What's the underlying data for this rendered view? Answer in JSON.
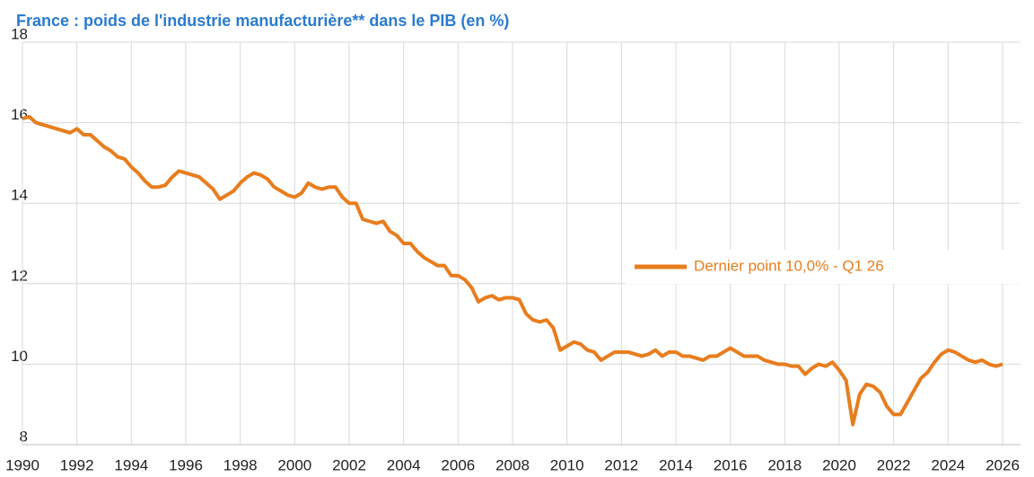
{
  "chart_data": {
    "type": "line",
    "title": "France : poids de l'industrie manufacturière** dans le PIB (en %)",
    "x": [
      1990,
      1990.25,
      1990.5,
      1990.75,
      1991,
      1991.25,
      1991.5,
      1991.75,
      1992,
      1992.25,
      1992.5,
      1992.75,
      1993,
      1993.25,
      1993.5,
      1993.75,
      1994,
      1994.25,
      1994.5,
      1994.75,
      1995,
      1995.25,
      1995.5,
      1995.75,
      1996,
      1996.25,
      1996.5,
      1996.75,
      1997,
      1997.25,
      1997.5,
      1997.75,
      1998,
      1998.25,
      1998.5,
      1998.75,
      1999,
      1999.25,
      1999.5,
      1999.75,
      2000,
      2000.25,
      2000.5,
      2000.75,
      2001,
      2001.25,
      2001.5,
      2001.75,
      2002,
      2002.25,
      2002.5,
      2002.75,
      2003,
      2003.25,
      2003.5,
      2003.75,
      2004,
      2004.25,
      2004.5,
      2004.75,
      2005,
      2005.25,
      2005.5,
      2005.75,
      2006,
      2006.25,
      2006.5,
      2006.75,
      2007,
      2007.25,
      2007.5,
      2007.75,
      2008,
      2008.25,
      2008.5,
      2008.75,
      2009,
      2009.25,
      2009.5,
      2009.75,
      2010,
      2010.25,
      2010.5,
      2010.75,
      2011,
      2011.25,
      2011.5,
      2011.75,
      2012,
      2012.25,
      2012.5,
      2012.75,
      2013,
      2013.25,
      2013.5,
      2013.75,
      2014,
      2014.25,
      2014.5,
      2014.75,
      2015,
      2015.25,
      2015.5,
      2015.75,
      2016,
      2016.25,
      2016.5,
      2016.75,
      2017,
      2017.25,
      2017.5,
      2017.75,
      2018,
      2018.25,
      2018.5,
      2018.75,
      2019,
      2019.25,
      2019.5,
      2019.75,
      2020,
      2020.25,
      2020.5,
      2020.75,
      2021,
      2021.25,
      2021.5,
      2021.75,
      2022,
      2022.25,
      2022.5,
      2022.75,
      2023,
      2023.25,
      2023.5,
      2023.75,
      2024,
      2024.25,
      2024.5,
      2024.75,
      2025,
      2025.25,
      2025.5,
      2025.75,
      2026
    ],
    "series": [
      {
        "name": "Dernier point 10,0% - Q1 26",
        "color": "#e87d1e",
        "values": [
          16.1,
          16.15,
          16.0,
          15.95,
          15.9,
          15.85,
          15.8,
          15.75,
          15.85,
          15.7,
          15.7,
          15.55,
          15.4,
          15.3,
          15.15,
          15.1,
          14.9,
          14.75,
          14.55,
          14.4,
          14.4,
          14.45,
          14.65,
          14.8,
          14.75,
          14.7,
          14.65,
          14.5,
          14.35,
          14.1,
          14.2,
          14.3,
          14.5,
          14.65,
          14.75,
          14.7,
          14.6,
          14.4,
          14.3,
          14.2,
          14.15,
          14.25,
          14.5,
          14.4,
          14.35,
          14.4,
          14.4,
          14.15,
          14.0,
          14.0,
          13.6,
          13.55,
          13.5,
          13.55,
          13.3,
          13.2,
          13.0,
          13.0,
          12.8,
          12.65,
          12.55,
          12.45,
          12.45,
          12.2,
          12.2,
          12.1,
          11.9,
          11.55,
          11.65,
          11.7,
          11.6,
          11.65,
          11.65,
          11.6,
          11.25,
          11.1,
          11.05,
          11.1,
          10.9,
          10.35,
          10.45,
          10.55,
          10.5,
          10.35,
          10.3,
          10.1,
          10.2,
          10.3,
          10.3,
          10.3,
          10.25,
          10.2,
          10.25,
          10.35,
          10.2,
          10.3,
          10.3,
          10.2,
          10.2,
          10.15,
          10.1,
          10.2,
          10.2,
          10.3,
          10.4,
          10.3,
          10.2,
          10.2,
          10.2,
          10.1,
          10.05,
          10.0,
          10.0,
          9.95,
          9.95,
          9.75,
          9.9,
          10.0,
          9.95,
          10.05,
          9.85,
          9.6,
          8.5,
          9.25,
          9.5,
          9.45,
          9.3,
          8.95,
          8.75,
          8.75,
          9.05,
          9.35,
          9.65,
          9.8,
          10.05,
          10.25,
          10.35,
          10.3,
          10.2,
          10.1,
          10.05,
          10.1,
          10.0,
          9.95,
          10.0
        ]
      }
    ],
    "xlim": [
      1990,
      2026
    ],
    "xticks": [
      1990,
      1992,
      1994,
      1996,
      1998,
      2000,
      2002,
      2004,
      2006,
      2008,
      2010,
      2012,
      2014,
      2016,
      2018,
      2020,
      2022,
      2024,
      2026
    ],
    "ylim": [
      8,
      18
    ],
    "yticks": [
      8,
      10,
      12,
      14,
      16,
      18
    ],
    "grid": true,
    "legend": "right"
  }
}
